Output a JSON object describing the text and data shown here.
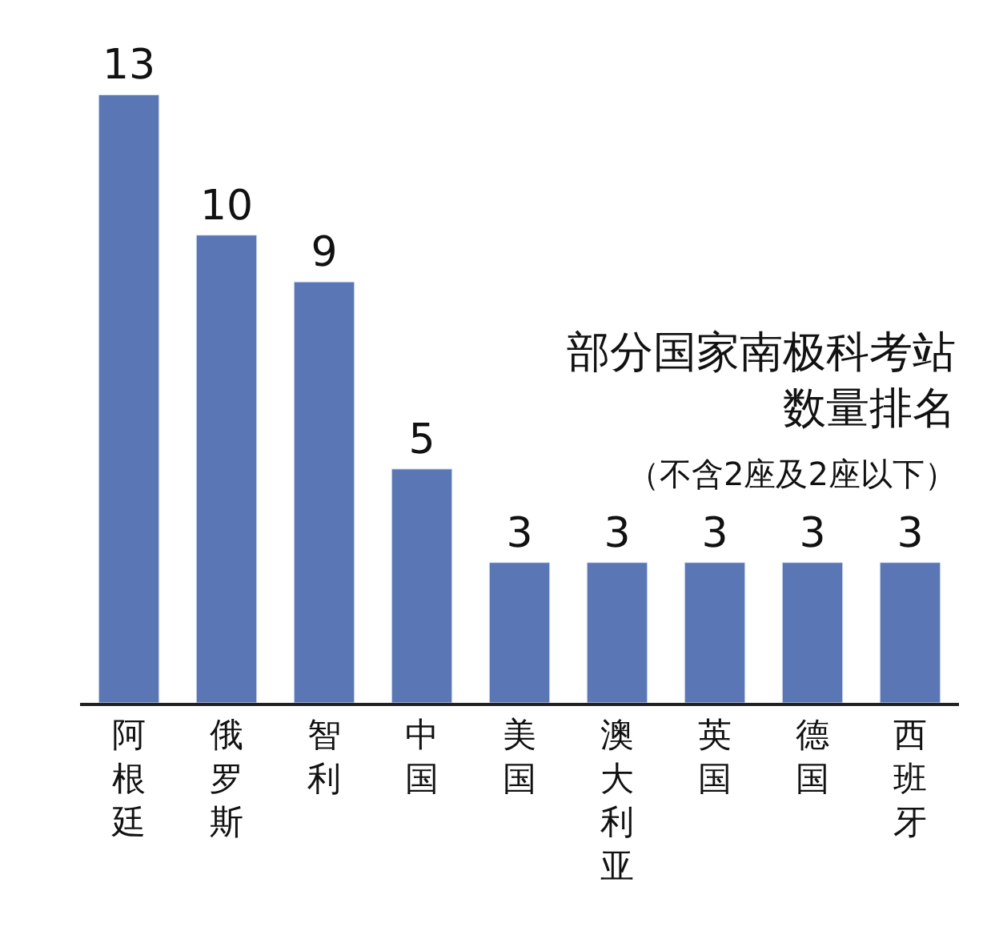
{
  "chart_data": {
    "type": "bar",
    "title": "部分国家南极科考站数量排名",
    "subtitle": "（不含2座及2座以下）",
    "categories": [
      "阿根廷",
      "俄罗斯",
      "智利",
      "中国",
      "美国",
      "澳大利亚",
      "英国",
      "德国",
      "西班牙"
    ],
    "values": [
      13,
      10,
      9,
      5,
      3,
      3,
      3,
      3,
      3
    ],
    "color": "#5b76b5",
    "data_labels": true
  }
}
